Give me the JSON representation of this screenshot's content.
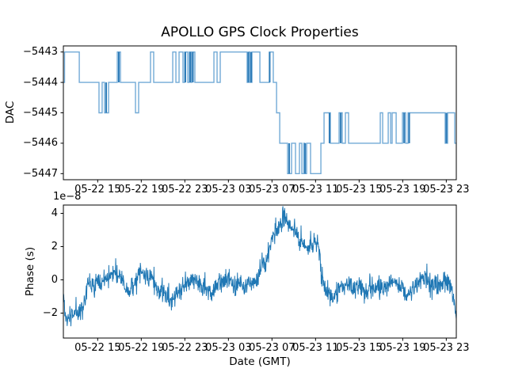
{
  "figure": {
    "title": "APOLLO GPS Clock Properties",
    "background": "#ffffff",
    "text_color": "#000000"
  },
  "chart_data": [
    {
      "type": "line",
      "subtype": "step-post",
      "title": "APOLLO GPS Clock Properties",
      "ylabel": "DAC",
      "x_unit": "hours since 05-22 00:00 (GMT)",
      "xlim": [
        11.85,
        47.92
      ],
      "ylim": [
        -5447.2,
        -5442.8
      ],
      "grid": false,
      "legend": "none",
      "x_ticks": {
        "positions": [
          15,
          19,
          23,
          27,
          31,
          35,
          39,
          43,
          47
        ],
        "labels": [
          "05-22 15",
          "05-22 19",
          "05-22 23",
          "05-23 03",
          "05-23 07",
          "05-23 11",
          "05-23 15",
          "05-23 19",
          "05-23 23"
        ]
      },
      "y_ticks": {
        "positions": [
          -5443,
          -5444,
          -5445,
          -5446,
          -5447
        ],
        "labels": [
          "−5443",
          "−5444",
          "−5445",
          "−5446",
          "−5447"
        ]
      },
      "line_color": "#72aad6",
      "emphasis_color": "#2e7cb8",
      "steps": [
        [
          11.85,
          -5444
        ],
        [
          11.96,
          -5443
        ],
        [
          13.31,
          -5444
        ],
        [
          15.12,
          -5445
        ],
        [
          15.41,
          -5444
        ],
        [
          15.63,
          -5445
        ],
        [
          16.0,
          -5444
        ],
        [
          16.8,
          -5443
        ],
        [
          17.09,
          -5444
        ],
        [
          18.47,
          -5445
        ],
        [
          18.76,
          -5444
        ],
        [
          19.85,
          -5443
        ],
        [
          20.14,
          -5444
        ],
        [
          21.89,
          -5443
        ],
        [
          22.18,
          -5444
        ],
        [
          22.47,
          -5443
        ],
        [
          22.83,
          -5444
        ],
        [
          22.98,
          -5443
        ],
        [
          23.27,
          -5444
        ],
        [
          23.41,
          -5443
        ],
        [
          23.56,
          -5444
        ],
        [
          23.63,
          -5443
        ],
        [
          23.92,
          -5444
        ],
        [
          25.67,
          -5443
        ],
        [
          25.96,
          -5444
        ],
        [
          26.25,
          -5443
        ],
        [
          28.72,
          -5444
        ],
        [
          28.87,
          -5443
        ],
        [
          28.98,
          -5444
        ],
        [
          29.16,
          -5443
        ],
        [
          29.89,
          -5444
        ],
        [
          30.76,
          -5443
        ],
        [
          31.12,
          -5444
        ],
        [
          31.42,
          -5445
        ],
        [
          31.71,
          -5446
        ],
        [
          32.43,
          -5447
        ],
        [
          32.8,
          -5446
        ],
        [
          33.16,
          -5447
        ],
        [
          33.52,
          -5446
        ],
        [
          33.74,
          -5447
        ],
        [
          33.92,
          -5446
        ],
        [
          34.0,
          -5447
        ],
        [
          34.18,
          -5446
        ],
        [
          34.54,
          -5447
        ],
        [
          35.49,
          -5446
        ],
        [
          35.78,
          -5445
        ],
        [
          36.36,
          -5446
        ],
        [
          37.16,
          -5445
        ],
        [
          37.45,
          -5446
        ],
        [
          37.74,
          -5445
        ],
        [
          38.03,
          -5446
        ],
        [
          40.94,
          -5445
        ],
        [
          41.16,
          -5446
        ],
        [
          41.67,
          -5445
        ],
        [
          41.89,
          -5446
        ],
        [
          42.03,
          -5445
        ],
        [
          42.4,
          -5446
        ],
        [
          42.98,
          -5445
        ],
        [
          43.27,
          -5446
        ],
        [
          43.49,
          -5445
        ],
        [
          46.9,
          -5446
        ],
        [
          47.12,
          -5445
        ],
        [
          47.78,
          -5446
        ]
      ],
      "dark_bars": [
        {
          "x": 15.78,
          "y1": -5444,
          "y2": -5445
        },
        {
          "x": 16.94,
          "y1": -5443,
          "y2": -5444
        },
        {
          "x": 23.05,
          "y1": -5443,
          "y2": -5444
        },
        {
          "x": 23.49,
          "y1": -5443,
          "y2": -5444
        },
        {
          "x": 23.74,
          "y1": -5443,
          "y2": -5444
        },
        {
          "x": 28.83,
          "y1": -5443,
          "y2": -5444
        },
        {
          "x": 29.09,
          "y1": -5443,
          "y2": -5444
        },
        {
          "x": 30.79,
          "y1": -5443,
          "y2": -5444
        },
        {
          "x": 32.58,
          "y1": -5446,
          "y2": -5447
        },
        {
          "x": 34.04,
          "y1": -5446,
          "y2": -5447
        },
        {
          "x": 36.28,
          "y1": -5445,
          "y2": -5446
        },
        {
          "x": 37.31,
          "y1": -5445,
          "y2": -5446
        },
        {
          "x": 43.13,
          "y1": -5445,
          "y2": -5446
        },
        {
          "x": 43.6,
          "y1": -5445,
          "y2": -5446
        },
        {
          "x": 47.01,
          "y1": -5445,
          "y2": -5446
        }
      ]
    },
    {
      "type": "line",
      "subtype": "noisy",
      "ylabel": "Phase (s)",
      "xlabel": "Date (GMT)",
      "offset_text": "1e−8",
      "y_scale": 1e-08,
      "xlim": [
        11.85,
        47.92
      ],
      "ylim": [
        -3.5,
        4.5
      ],
      "grid": false,
      "legend": "none",
      "x_ticks": {
        "positions": [
          15,
          19,
          23,
          27,
          31,
          35,
          39,
          43,
          47
        ],
        "labels": [
          "05-22 15",
          "05-22 19",
          "05-22 23",
          "05-23 03",
          "05-23 07",
          "05-23 11",
          "05-23 15",
          "05-23 19",
          "05-23 23"
        ]
      },
      "y_ticks": {
        "positions": [
          -2,
          0,
          2,
          4
        ],
        "labels": [
          "−2",
          "0",
          "2",
          "4"
        ]
      },
      "line_color": "#1f77b4",
      "trend": [
        [
          11.85,
          -0.9
        ],
        [
          12.07,
          -2.7
        ],
        [
          12.39,
          -2.3
        ],
        [
          12.93,
          -1.9
        ],
        [
          13.65,
          -1.4
        ],
        [
          14.19,
          -0.35
        ],
        [
          15.1,
          -0.1
        ],
        [
          15.82,
          0.3
        ],
        [
          16.54,
          0.45
        ],
        [
          17.08,
          -0.1
        ],
        [
          17.8,
          -0.55
        ],
        [
          18.7,
          0.15
        ],
        [
          19.78,
          0.2
        ],
        [
          20.87,
          -0.6
        ],
        [
          21.77,
          -1.5
        ],
        [
          22.31,
          -0.6
        ],
        [
          23.39,
          -0.1
        ],
        [
          24.47,
          -0.25
        ],
        [
          25.38,
          -0.7
        ],
        [
          26.28,
          -0.3
        ],
        [
          27.0,
          0.2
        ],
        [
          27.72,
          -0.3
        ],
        [
          28.44,
          -0.5
        ],
        [
          29.16,
          -0.1
        ],
        [
          29.89,
          0.5
        ],
        [
          30.61,
          1.3
        ],
        [
          31.15,
          2.6
        ],
        [
          31.69,
          3.3
        ],
        [
          32.23,
          3.9
        ],
        [
          32.7,
          3.1
        ],
        [
          33.49,
          2.5
        ],
        [
          34.03,
          2.1
        ],
        [
          34.57,
          2.3
        ],
        [
          35.11,
          2.0
        ],
        [
          35.37,
          1.5
        ],
        [
          35.58,
          0.0
        ],
        [
          35.84,
          -0.7
        ],
        [
          36.74,
          -0.8
        ],
        [
          37.46,
          -0.3
        ],
        [
          38.36,
          -0.6
        ],
        [
          39.08,
          -0.2
        ],
        [
          39.8,
          -0.75
        ],
        [
          40.71,
          -0.45
        ],
        [
          41.61,
          -0.2
        ],
        [
          42.33,
          -0.35
        ],
        [
          43.05,
          -0.7
        ],
        [
          43.95,
          -0.45
        ],
        [
          44.85,
          -0.15
        ],
        [
          45.57,
          0.1
        ],
        [
          46.29,
          -0.3
        ],
        [
          47.01,
          -0.2
        ],
        [
          47.55,
          -0.7
        ],
        [
          47.92,
          -2.1
        ]
      ],
      "noise_sigma": 0.28,
      "n_points": 1150,
      "seed": 11
    }
  ]
}
